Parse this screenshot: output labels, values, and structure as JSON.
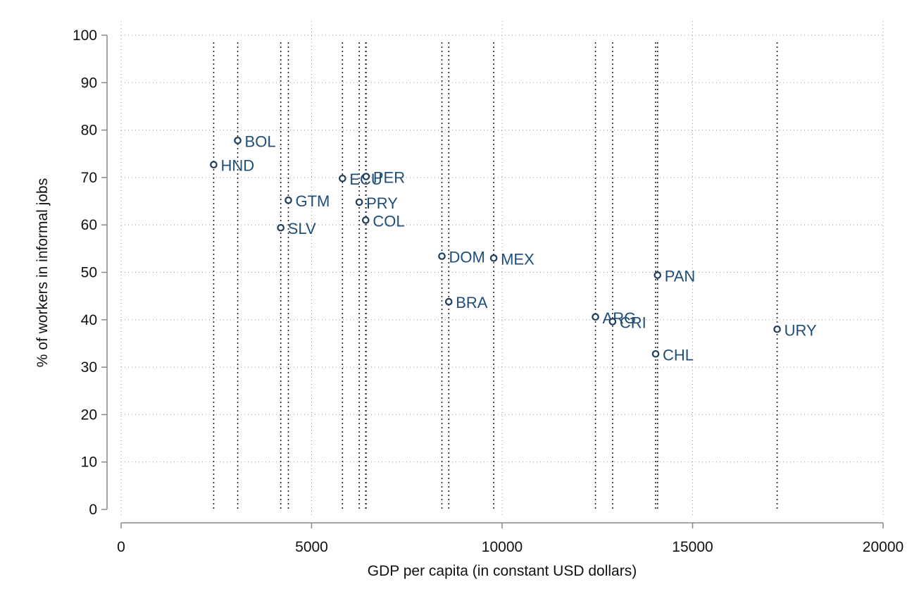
{
  "chart_data": {
    "type": "scatter",
    "title": "",
    "xlabel": "GDP per capita (in constant USD dollars)",
    "ylabel": "% of workers in informal jobs",
    "xlim": [
      0,
      20000
    ],
    "ylim": [
      0,
      100
    ],
    "xticks": [
      0,
      5000,
      10000,
      15000,
      20000
    ],
    "yticks": [
      0,
      10,
      20,
      30,
      40,
      50,
      60,
      70,
      80,
      90,
      100
    ],
    "grid": true,
    "reference_lines": "vertical dotted line at each country's GDP per capita",
    "marker_color": "#1f3e5e",
    "label_color": "#1f4e79",
    "points": [
      {
        "label": "HND",
        "x": 2430,
        "y": 72.7
      },
      {
        "label": "BOL",
        "x": 3060,
        "y": 77.8
      },
      {
        "label": "SLV",
        "x": 4190,
        "y": 59.4
      },
      {
        "label": "GTM",
        "x": 4390,
        "y": 65.2
      },
      {
        "label": "ECU",
        "x": 5810,
        "y": 69.8
      },
      {
        "label": "PRY",
        "x": 6250,
        "y": 64.8
      },
      {
        "label": "PER",
        "x": 6430,
        "y": 70.2
      },
      {
        "label": "COL",
        "x": 6420,
        "y": 61.0
      },
      {
        "label": "DOM",
        "x": 8420,
        "y": 53.4
      },
      {
        "label": "BRA",
        "x": 8600,
        "y": 43.8
      },
      {
        "label": "MEX",
        "x": 9780,
        "y": 53.0
      },
      {
        "label": "ARG",
        "x": 12450,
        "y": 40.6
      },
      {
        "label": "CRI",
        "x": 12900,
        "y": 39.6
      },
      {
        "label": "CHL",
        "x": 14030,
        "y": 32.8
      },
      {
        "label": "PAN",
        "x": 14080,
        "y": 49.4
      },
      {
        "label": "URY",
        "x": 17220,
        "y": 38.0
      }
    ]
  }
}
